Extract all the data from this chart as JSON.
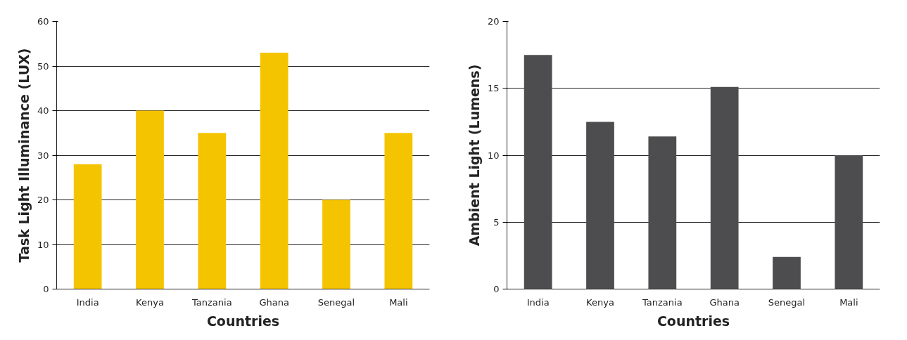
{
  "chart_data": [
    {
      "type": "bar",
      "xlabel": "Countries",
      "ylabel": "Task Light Illuminance (LUX)",
      "categories": [
        "India",
        "Kenya",
        "Tanzania",
        "Ghana",
        "Senegal",
        "Mali"
      ],
      "values": [
        28,
        40,
        35,
        53,
        20,
        35
      ],
      "color": "#f5c400",
      "ylim": [
        0,
        60
      ],
      "yticks": [
        0,
        10,
        20,
        30,
        40,
        50,
        60
      ],
      "grid": "y"
    },
    {
      "type": "bar",
      "xlabel": "Countries",
      "ylabel": "Ambient Light (Lumens)",
      "categories": [
        "India",
        "Kenya",
        "Tanzania",
        "Ghana",
        "Senegal",
        "Mali"
      ],
      "values": [
        17.5,
        12.5,
        11.4,
        15.1,
        2.4,
        10
      ],
      "color": "#4d4d4f",
      "ylim": [
        0,
        20
      ],
      "yticks": [
        0,
        5,
        10,
        15,
        20
      ],
      "grid": "y"
    }
  ]
}
